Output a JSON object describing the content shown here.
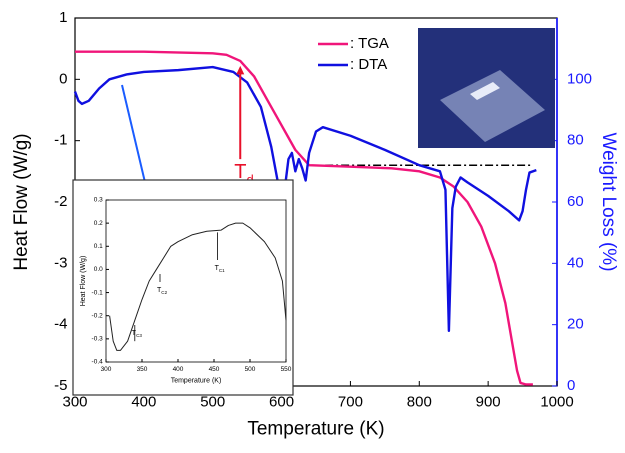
{
  "chart_data": [
    {
      "type": "line",
      "xlabel": "Temperature (K)",
      "ylabel": "Heat Flow (W/g)",
      "y2label": "Weight Loss (%)",
      "xlim": [
        300,
        1000
      ],
      "xticks": [
        300,
        400,
        500,
        600,
        700,
        800,
        900,
        1000
      ],
      "ylim": [
        -5,
        1
      ],
      "yticks": [
        -5,
        -4,
        -3,
        -2,
        -1,
        0,
        1
      ],
      "y2lim": [
        0,
        120
      ],
      "y2ticks": [
        0,
        20,
        40,
        60,
        80,
        100
      ],
      "y2color": "#1a1aff",
      "reference_line_y": -1.4,
      "annotation": {
        "text": "T",
        "sub": "d",
        "color": "#e8102a"
      },
      "series": [
        {
          "name": ": TGA",
          "color": "#f0157a",
          "axis": "y2",
          "x": [
            300,
            400,
            500,
            520,
            540,
            560,
            580,
            600,
            620,
            640,
            700,
            760,
            800,
            830,
            850,
            870,
            890,
            910,
            925,
            935,
            942,
            947,
            955,
            965
          ],
          "values": [
            109,
            109,
            108.5,
            108,
            106,
            101,
            93,
            85,
            77,
            72,
            71.5,
            71,
            70,
            68,
            65,
            60,
            52,
            40,
            27,
            14,
            5,
            1,
            0.5,
            0.5
          ]
        },
        {
          "name": ": DTA",
          "color": "#1010e0",
          "x": [
            300,
            305,
            310,
            320,
            335,
            350,
            375,
            400,
            450,
            500,
            530,
            550,
            570,
            585,
            595,
            600,
            605,
            610,
            615,
            620,
            625,
            630,
            635,
            640,
            650,
            660,
            700,
            750,
            800,
            830,
            838,
            843,
            848,
            853,
            860,
            870,
            900,
            930,
            945,
            950,
            955,
            960,
            970
          ],
          "values": [
            -0.2,
            -0.35,
            -0.4,
            -0.35,
            -0.15,
            0.0,
            0.08,
            0.12,
            0.15,
            0.2,
            0.12,
            -0.05,
            -0.45,
            -1.1,
            -1.7,
            -2.0,
            -1.75,
            -1.3,
            -1.2,
            -1.5,
            -1.3,
            -1.45,
            -1.65,
            -1.2,
            -0.85,
            -0.78,
            -0.92,
            -1.15,
            -1.4,
            -1.5,
            -1.8,
            -4.1,
            -2.1,
            -1.75,
            -1.6,
            -1.68,
            -1.9,
            -2.15,
            -2.3,
            -2.15,
            -1.8,
            -1.52,
            -1.48
          ]
        }
      ]
    },
    {
      "type": "line",
      "xlabel": "Temperature (K)",
      "ylabel": "Heat Flow (W/g)",
      "xlim": [
        300,
        550
      ],
      "xticks": [
        300,
        350,
        400,
        450,
        500,
        550
      ],
      "ylim": [
        -0.4,
        0.3
      ],
      "yticks": [
        -0.4,
        -0.3,
        -0.2,
        -0.1,
        {
          "value": 0,
          "label": "0.0"
        },
        0.1,
        0.2,
        0.3
      ],
      "labels": [
        {
          "text": "T",
          "sub": "C3"
        },
        {
          "text": "T",
          "sub": "C2"
        },
        {
          "text": "T",
          "sub": "C1"
        }
      ],
      "series": [
        {
          "color": "#222222",
          "x": [
            305,
            310,
            315,
            320,
            330,
            340,
            350,
            360,
            370,
            380,
            390,
            400,
            420,
            440,
            460,
            470,
            480,
            490,
            500,
            520,
            535,
            545,
            550
          ],
          "values": [
            -0.2,
            -0.31,
            -0.35,
            -0.35,
            -0.31,
            -0.22,
            -0.13,
            -0.05,
            0.0,
            0.05,
            0.1,
            0.12,
            0.15,
            0.165,
            0.17,
            0.19,
            0.2,
            0.2,
            0.18,
            0.12,
            0.05,
            -0.05,
            -0.22
          ]
        }
      ]
    }
  ]
}
